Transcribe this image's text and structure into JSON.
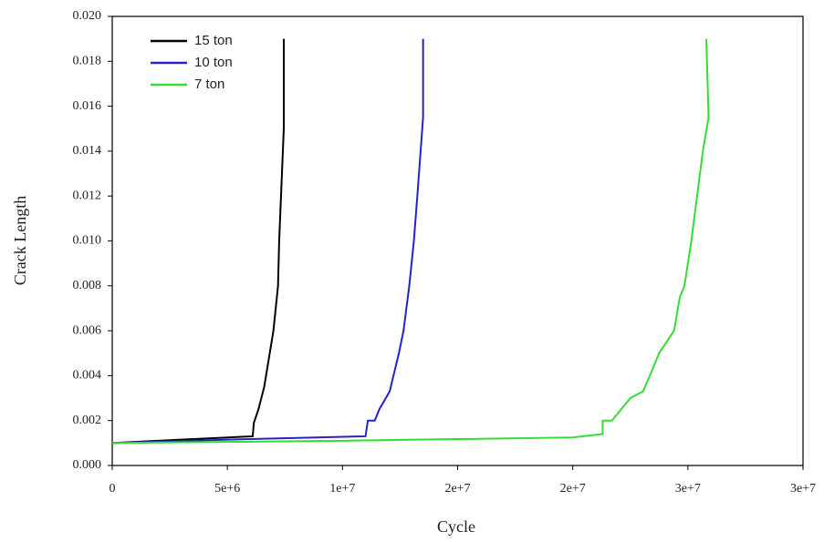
{
  "chart_data": {
    "type": "line",
    "x_label": "Cycle",
    "y_label": "Crack Length",
    "xlim": [
      0,
      30000000
    ],
    "ylim": [
      0,
      0.02
    ],
    "xticks": [
      0,
      {
        "value": 5000000,
        "label": "5e+6"
      },
      {
        "value": 10000000,
        "label": "1e+7"
      },
      {
        "value": 15000000,
        "label": "2e+7"
      },
      {
        "value": 20000000,
        "label": "2e+7"
      },
      {
        "value": 25000000,
        "label": "3e+7"
      },
      {
        "value": 30000000,
        "label": "3e+7"
      }
    ],
    "yticks": [
      {
        "value": 0,
        "label": "0.000"
      },
      {
        "value": 0.002,
        "label": "0.002"
      },
      {
        "value": 0.004,
        "label": "0.004"
      },
      {
        "value": 0.006,
        "label": "0.006"
      },
      {
        "value": 0.008,
        "label": "0.008"
      },
      {
        "value": 0.01,
        "label": "0.010"
      },
      {
        "value": 0.012,
        "label": "0.012"
      },
      {
        "value": 0.014,
        "label": "0.014"
      },
      {
        "value": 0.016,
        "label": "0.016"
      },
      {
        "value": 0.018,
        "label": "0.018"
      },
      {
        "value": 0.02,
        "label": "0.020"
      }
    ],
    "grid": false,
    "legend": "upper left",
    "series": [
      {
        "name": "15 ton",
        "color": "#000000",
        "x": [
          0,
          3000000,
          6100000,
          6150000,
          6350000,
          6600000,
          7000000,
          7200000,
          7250000,
          7450000,
          7450000
        ],
        "values": [
          0.001,
          0.00115,
          0.0013,
          0.0019,
          0.0025,
          0.0035,
          0.006,
          0.008,
          0.01,
          0.015,
          0.019
        ]
      },
      {
        "name": "10 ton",
        "color": "#2323c8",
        "x": [
          0,
          5000000,
          11000000,
          11100000,
          11400000,
          11600000,
          12050000,
          12450000,
          12650000,
          12900000,
          13100000,
          13250000,
          13500000,
          13500000
        ],
        "values": [
          0.001,
          0.00115,
          0.0013,
          0.002,
          0.002,
          0.0025,
          0.0033,
          0.005,
          0.006,
          0.008,
          0.01,
          0.012,
          0.0155,
          0.019
        ]
      },
      {
        "name": "7 ton",
        "color": "#33dd33",
        "x": [
          0,
          10000000,
          20000000,
          21300000,
          21300000,
          21700000,
          22100000,
          22500000,
          23050000,
          23350000,
          23750000,
          24400000,
          24650000,
          24850000,
          25150000,
          25400000,
          25650000,
          25900000,
          25800000
        ],
        "values": [
          0.001,
          0.0011,
          0.00125,
          0.0014,
          0.002,
          0.002,
          0.0025,
          0.003,
          0.0033,
          0.004,
          0.005,
          0.006,
          0.0075,
          0.008,
          0.01,
          0.012,
          0.014,
          0.0155,
          0.019
        ]
      }
    ]
  }
}
